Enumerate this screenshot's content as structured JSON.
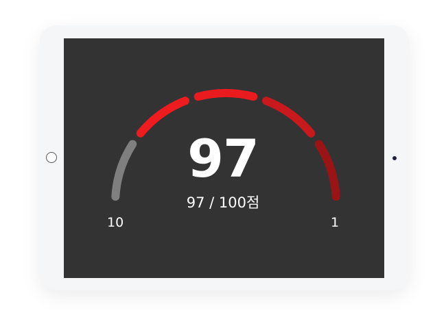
{
  "gauge": {
    "score": "97",
    "score_text": "97 / 100점",
    "value": 97,
    "max": 100,
    "left_label": "10",
    "right_label": "1",
    "segment_colors": [
      "#7f7f7f",
      "#ee1c1f",
      "#ea1b1e",
      "#c8191c",
      "#9a1416"
    ]
  }
}
